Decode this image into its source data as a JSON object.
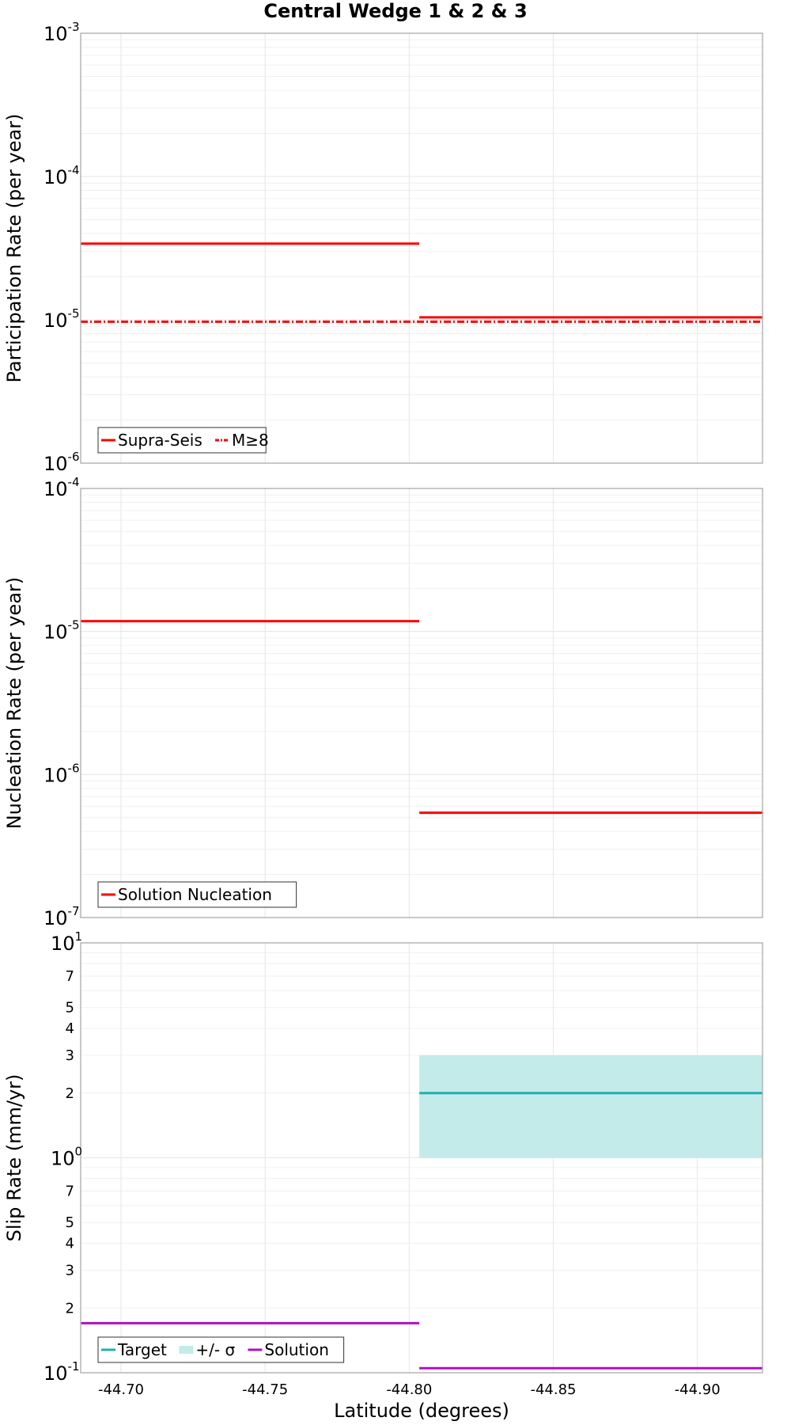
{
  "chart_data": {
    "type": "line",
    "title": "Central Wedge 1 & 2 & 3",
    "xlabel": "Latitude (degrees)",
    "xlim": [
      -44.686,
      -44.9226
    ],
    "x_ticks": [
      -44.7,
      -44.75,
      -44.8,
      -44.85,
      -44.9
    ],
    "x_tick_labels": [
      "-44.70",
      "-44.75",
      "-44.80",
      "-44.85",
      "-44.90"
    ],
    "colors": {
      "red": "#ff0000",
      "teal": "#20b0b0",
      "band": "#c3ebea",
      "purple": "#b010c0"
    },
    "panels": [
      {
        "id": "participation",
        "ylabel": "Participation Rate (per year)",
        "yscale": "log",
        "ylim": [
          1e-06,
          0.001
        ],
        "decade_ticks": [
          {
            "base": "10",
            "exp": "-6",
            "value": 1e-06
          },
          {
            "base": "10",
            "exp": "-5",
            "value": 1e-05
          },
          {
            "base": "10",
            "exp": "-4",
            "value": 0.0001
          },
          {
            "base": "10",
            "exp": "-3",
            "value": 0.001
          }
        ],
        "minor_labels": [],
        "series": [
          {
            "name": "Supra-Seis",
            "style": "solid",
            "color": "#ff0000",
            "segments": [
              {
                "x0": -44.686,
                "x1": -44.8035,
                "y": 3.4e-05
              },
              {
                "x0": -44.8035,
                "x1": -44.9226,
                "y": 1.04e-05
              }
            ]
          },
          {
            "name": "M≥8",
            "style": "dashdot",
            "color": "#ff0000",
            "segments": [
              {
                "x0": -44.686,
                "x1": -44.9226,
                "y": 9.7e-06
              }
            ]
          }
        ],
        "legend": [
          "Supra-Seis",
          "M≥8"
        ]
      },
      {
        "id": "nucleation",
        "ylabel": "Nucleation Rate (per year)",
        "yscale": "log",
        "ylim": [
          1e-07,
          0.0001
        ],
        "decade_ticks": [
          {
            "base": "10",
            "exp": "-7",
            "value": 1e-07
          },
          {
            "base": "10",
            "exp": "-6",
            "value": 1e-06
          },
          {
            "base": "10",
            "exp": "-5",
            "value": 1e-05
          },
          {
            "base": "10",
            "exp": "-4",
            "value": 0.0001
          }
        ],
        "minor_labels": [],
        "series": [
          {
            "name": "Solution Nucleation",
            "style": "solid",
            "color": "#ff0000",
            "segments": [
              {
                "x0": -44.686,
                "x1": -44.8035,
                "y": 1.18e-05
              },
              {
                "x0": -44.8035,
                "x1": -44.9226,
                "y": 5.4e-07
              }
            ]
          }
        ],
        "legend": [
          "Solution Nucleation"
        ]
      },
      {
        "id": "sliprate",
        "ylabel": "Slip Rate (mm/yr)",
        "yscale": "log",
        "ylim": [
          0.1,
          10
        ],
        "decade_ticks": [
          {
            "base": "10",
            "exp": "-1",
            "value": 0.1
          },
          {
            "base": "10",
            "exp": "0",
            "value": 1
          },
          {
            "base": "10",
            "exp": "1",
            "value": 10
          }
        ],
        "minor_labels": [
          {
            "label": "2",
            "value": 0.2
          },
          {
            "label": "3",
            "value": 0.3
          },
          {
            "label": "4",
            "value": 0.4
          },
          {
            "label": "5",
            "value": 0.5
          },
          {
            "label": "7",
            "value": 0.7
          },
          {
            "label": "2",
            "value": 2
          },
          {
            "label": "3",
            "value": 3
          },
          {
            "label": "4",
            "value": 4
          },
          {
            "label": "5",
            "value": 5
          },
          {
            "label": "7",
            "value": 7
          }
        ],
        "band": {
          "name": "+/- σ",
          "x0": -44.8035,
          "x1": -44.9226,
          "y0": 1.0,
          "y1": 3.0,
          "color": "#c3ebea"
        },
        "series": [
          {
            "name": "Target",
            "style": "solid",
            "color": "#20b0b0",
            "segments": [
              {
                "x0": -44.8035,
                "x1": -44.9226,
                "y": 2.0
              }
            ]
          },
          {
            "name": "Solution",
            "style": "solid",
            "color": "#b010c0",
            "segments": [
              {
                "x0": -44.686,
                "x1": -44.8035,
                "y": 0.17
              },
              {
                "x0": -44.8035,
                "x1": -44.9226,
                "y": 0.105
              }
            ]
          }
        ],
        "legend": [
          "Target",
          "+/- σ",
          "Solution"
        ]
      }
    ]
  }
}
